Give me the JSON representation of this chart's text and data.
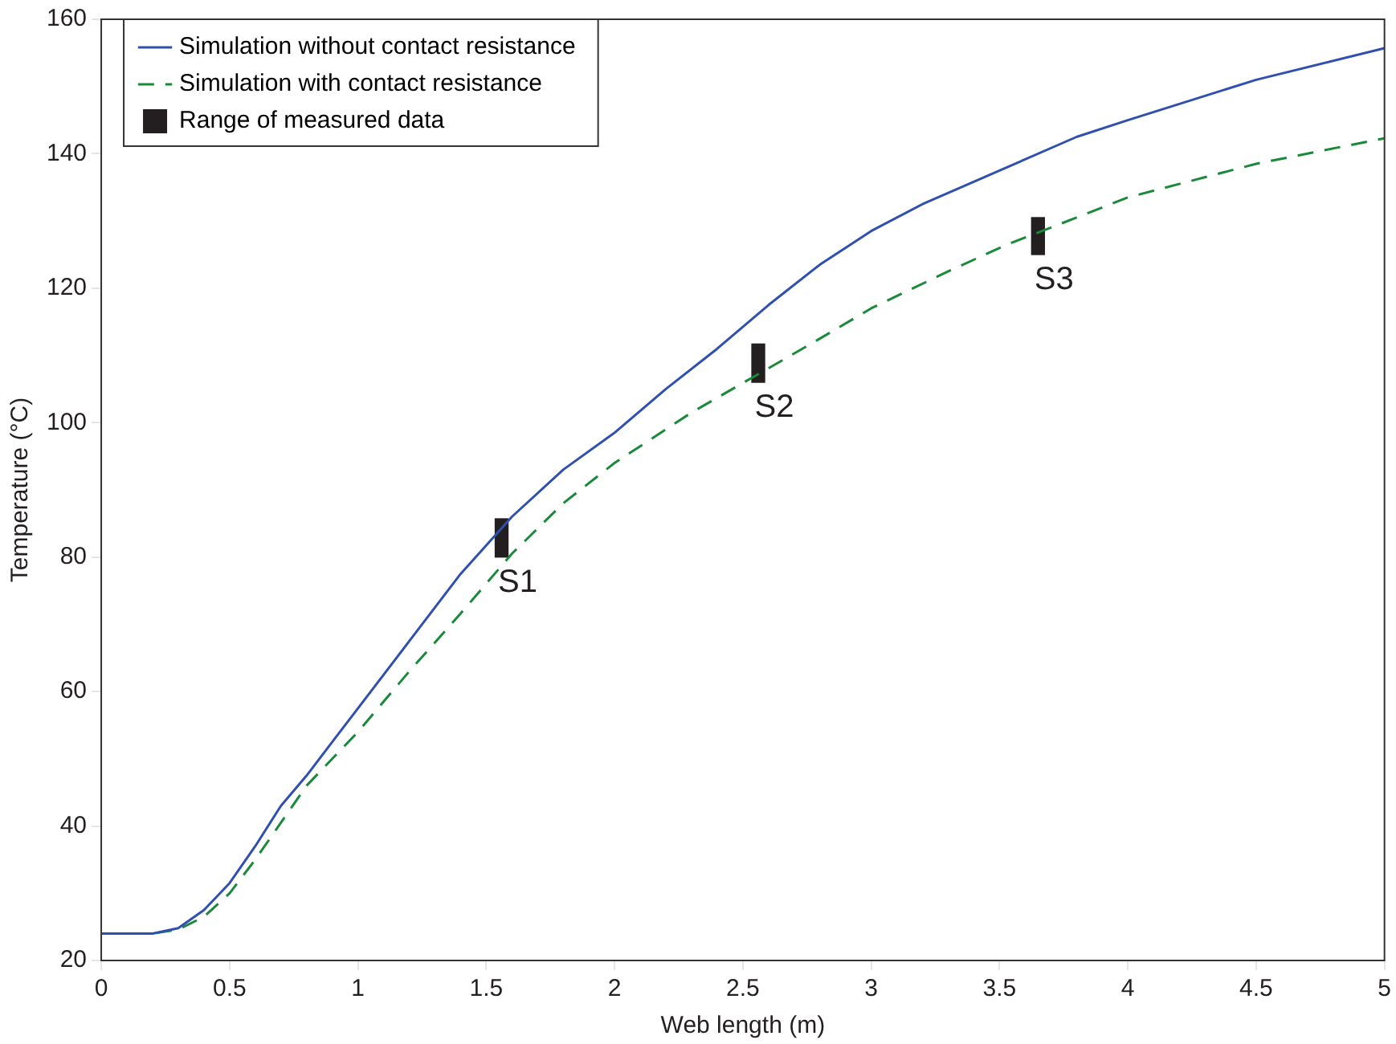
{
  "chart_data": {
    "type": "line",
    "xlabel": "Web length (m)",
    "ylabel": "Temperature (°C)",
    "xlim": [
      0,
      5
    ],
    "xticks": [
      0,
      0.5,
      1,
      1.5,
      2,
      2.5,
      3,
      3.5,
      4,
      4.5,
      5
    ],
    "ylim": [
      20,
      160
    ],
    "yticks": [
      20,
      40,
      60,
      80,
      100,
      120,
      140,
      160
    ],
    "grid": false,
    "legend": "top left",
    "marker": "none",
    "series": [
      {
        "name": "Simulation without contact resistance",
        "color": "#3050b0",
        "line_style": "solid",
        "x": [
          0,
          0.2,
          0.3,
          0.4,
          0.5,
          0.6,
          0.7,
          0.8,
          0.9,
          1.0,
          1.2,
          1.4,
          1.6,
          1.8,
          2.0,
          2.2,
          2.4,
          2.6,
          2.8,
          3.0,
          3.2,
          3.5,
          3.8,
          4.0,
          4.5,
          5.0
        ],
        "values": [
          24,
          24,
          24.8,
          27.5,
          31.5,
          37,
          43,
          47.5,
          52.5,
          57.5,
          67.5,
          77.5,
          86,
          93,
          98.5,
          105,
          111,
          117.5,
          123.5,
          128.5,
          132.5,
          137.5,
          142.5,
          145,
          151,
          155.7
        ]
      },
      {
        "name": "Simulation with contact resistance",
        "color": "#1a8a3a",
        "line_style": "dashed",
        "x": [
          0,
          0.2,
          0.3,
          0.4,
          0.5,
          0.6,
          0.7,
          0.8,
          1.0,
          1.2,
          1.4,
          1.6,
          1.8,
          2.0,
          2.3,
          2.55,
          2.8,
          3.0,
          3.3,
          3.53,
          3.8,
          4.0,
          4.5,
          5.0
        ],
        "values": [
          24,
          24,
          24.6,
          26.5,
          30,
          35,
          40.5,
          46,
          54,
          63,
          71.6,
          80.5,
          88,
          94,
          101.5,
          107,
          112.5,
          117,
          122.5,
          126.5,
          130.5,
          133.5,
          138.5,
          142.3
        ]
      },
      {
        "name": "Range of measured data",
        "type": "bar",
        "color": "#231f20",
        "x": [
          1.56,
          2.56,
          3.65
        ],
        "base": [
          80,
          106,
          125
        ],
        "values": [
          5.7,
          5.7,
          5.5
        ]
      }
    ],
    "annotations": [
      {
        "text": "S1",
        "x": 1.56,
        "y": 80
      },
      {
        "text": "S2",
        "x": 2.56,
        "y": 106
      },
      {
        "text": "S3",
        "x": 3.65,
        "y": 125
      }
    ]
  }
}
